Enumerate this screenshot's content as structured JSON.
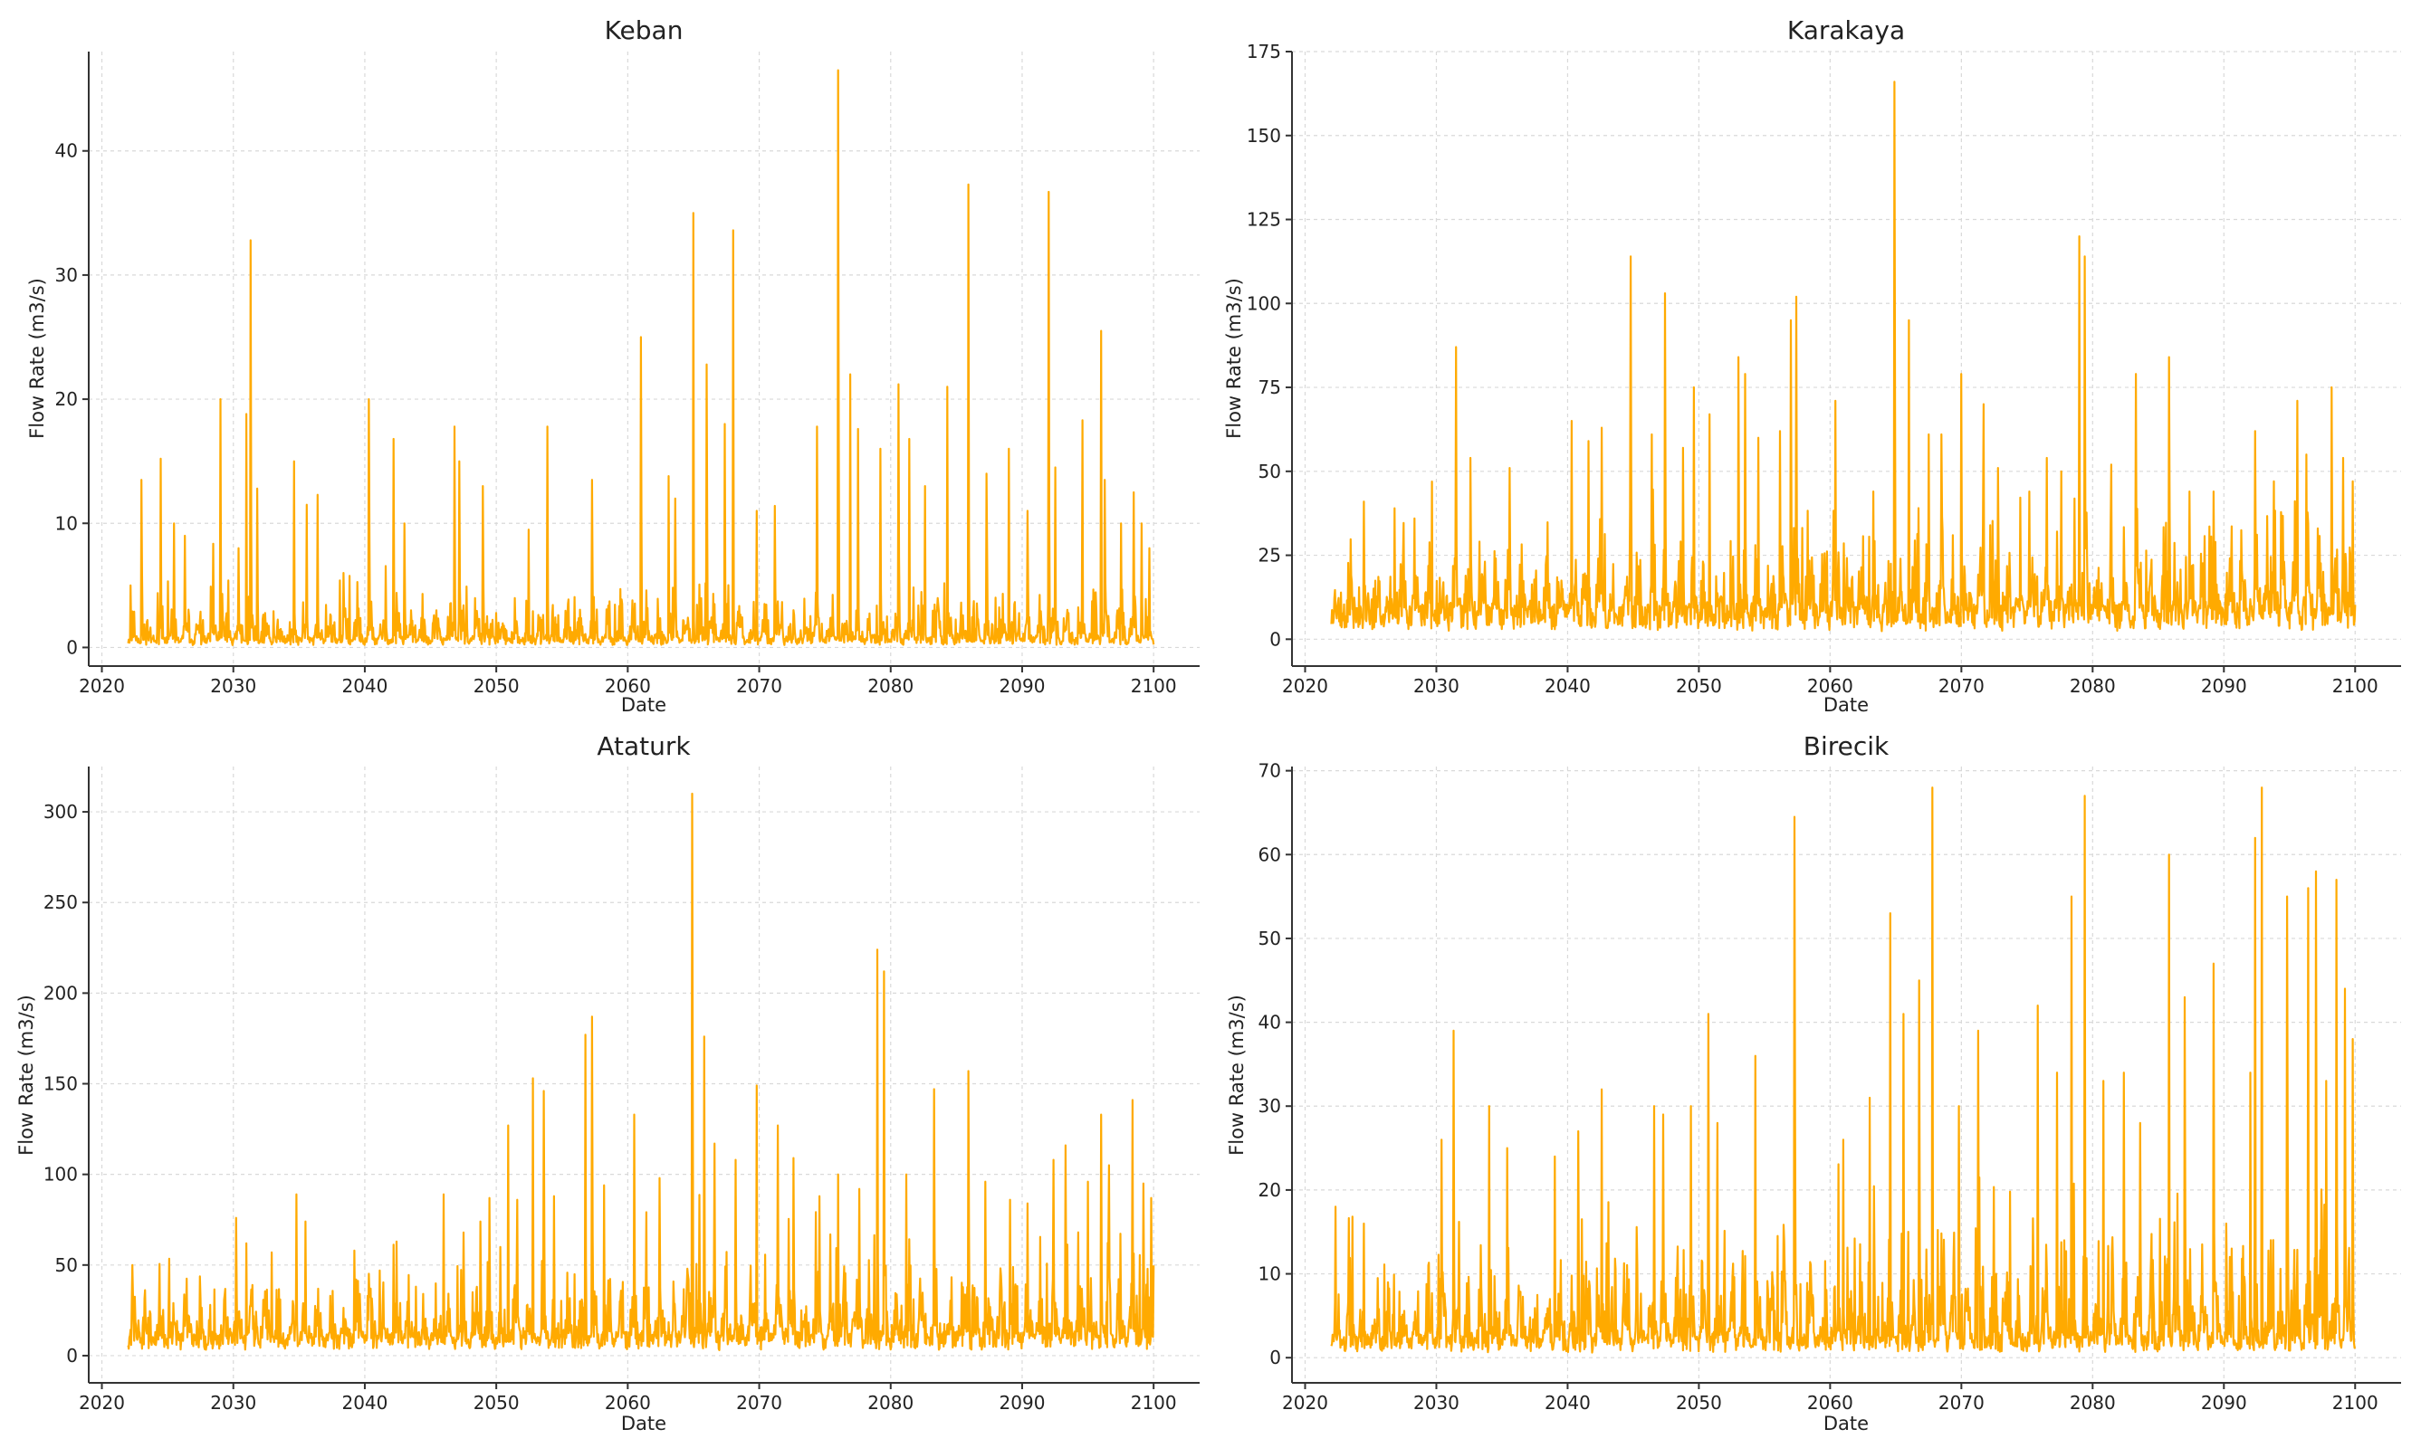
{
  "chart_data": [
    {
      "type": "line",
      "title": "Keban",
      "xlabel": "Date",
      "ylabel": "Flow Rate (m3/s)",
      "xlim": [
        2022,
        2100
      ],
      "ylim": [
        -1.5,
        48
      ],
      "xticks": [
        2020,
        2030,
        2040,
        2050,
        2060,
        2070,
        2080,
        2090,
        2100
      ],
      "yticks": [
        0,
        10,
        20,
        30,
        40
      ],
      "grid": true,
      "color": "#FFAA00",
      "baseline": 0.6,
      "spread": 2.2,
      "seed": 11,
      "series": [
        {
          "name": "Flow Rate",
          "peaks": [
            [
              2022.2,
              5
            ],
            [
              2023,
              13.5
            ],
            [
              2024.5,
              15.2
            ],
            [
              2025.5,
              10
            ],
            [
              2026.3,
              9
            ],
            [
              2029,
              20
            ],
            [
              2030.4,
              8
            ],
            [
              2031,
              18.8
            ],
            [
              2031.3,
              32.8
            ],
            [
              2031.8,
              12.8
            ],
            [
              2034.6,
              15
            ],
            [
              2035.6,
              11.5
            ],
            [
              2036.4,
              12.3
            ],
            [
              2038.4,
              6
            ],
            [
              2040.3,
              20
            ],
            [
              2042.2,
              16.8
            ],
            [
              2043,
              10
            ],
            [
              2046.8,
              17.8
            ],
            [
              2047.2,
              15
            ],
            [
              2049,
              13
            ],
            [
              2053.9,
              17.8
            ],
            [
              2057.3,
              13.5
            ],
            [
              2061,
              25
            ],
            [
              2063.1,
              13.8
            ],
            [
              2063.6,
              12
            ],
            [
              2065,
              35
            ],
            [
              2066,
              22.8
            ],
            [
              2067.4,
              18
            ],
            [
              2068,
              33.6
            ],
            [
              2069.8,
              11
            ],
            [
              2071.2,
              11.4
            ],
            [
              2074.4,
              17.8
            ],
            [
              2076,
              46.5
            ],
            [
              2076.9,
              22
            ],
            [
              2077.5,
              17.6
            ],
            [
              2079.2,
              16
            ],
            [
              2080.6,
              21.2
            ],
            [
              2081.4,
              16.8
            ],
            [
              2082.6,
              13
            ],
            [
              2084.3,
              21
            ],
            [
              2085.9,
              37.3
            ],
            [
              2087.3,
              14
            ],
            [
              2089,
              16
            ],
            [
              2090.4,
              11
            ],
            [
              2092,
              36.7
            ],
            [
              2092.5,
              14.5
            ],
            [
              2094.6,
              18.3
            ],
            [
              2096,
              25.5
            ],
            [
              2096.3,
              13.5
            ],
            [
              2097.5,
              10
            ],
            [
              2098.5,
              12.5
            ],
            [
              2099.1,
              10
            ],
            [
              2099.7,
              8
            ]
          ]
        }
      ]
    },
    {
      "type": "line",
      "title": "Karakaya",
      "xlabel": "Date",
      "ylabel": "Flow Rate (m3/s)",
      "xlim": [
        2022,
        2100
      ],
      "ylim": [
        -8,
        175
      ],
      "xticks": [
        2020,
        2030,
        2040,
        2050,
        2060,
        2070,
        2080,
        2090,
        2100
      ],
      "yticks": [
        0,
        25,
        50,
        75,
        100,
        125,
        150,
        175
      ],
      "grid": true,
      "color": "#FFAA00",
      "baseline": 8,
      "spread": 15,
      "seed": 23,
      "series": [
        {
          "name": "Flow Rate",
          "peaks": [
            [
              2024.5,
              41
            ],
            [
              2026.8,
              39
            ],
            [
              2031.5,
              87
            ],
            [
              2032.6,
              54
            ],
            [
              2035.6,
              51
            ],
            [
              2040.3,
              65
            ],
            [
              2041.6,
              59
            ],
            [
              2042.6,
              63
            ],
            [
              2044.8,
              114
            ],
            [
              2046.4,
              61
            ],
            [
              2047.4,
              103
            ],
            [
              2048.8,
              57
            ],
            [
              2049.6,
              75
            ],
            [
              2050.8,
              67
            ],
            [
              2053,
              84
            ],
            [
              2053.5,
              79
            ],
            [
              2056.2,
              62
            ],
            [
              2057,
              95
            ],
            [
              2057.4,
              102
            ],
            [
              2060.4,
              71
            ],
            [
              2063.3,
              44
            ],
            [
              2064.9,
              166
            ],
            [
              2066,
              95
            ],
            [
              2067.5,
              61
            ],
            [
              2068.5,
              61
            ],
            [
              2070,
              79
            ],
            [
              2071.7,
              70
            ],
            [
              2072.8,
              51
            ],
            [
              2075.2,
              44
            ],
            [
              2076.5,
              54
            ],
            [
              2077.6,
              50
            ],
            [
              2079,
              120
            ],
            [
              2079.4,
              114
            ],
            [
              2081.4,
              52
            ],
            [
              2083.3,
              79
            ],
            [
              2085.8,
              84
            ],
            [
              2087.4,
              44
            ],
            [
              2089.2,
              44
            ],
            [
              2092.4,
              62
            ],
            [
              2093.8,
              47
            ],
            [
              2095.6,
              71
            ],
            [
              2096.3,
              55
            ],
            [
              2098.2,
              75
            ],
            [
              2099.1,
              54
            ],
            [
              2099.8,
              47
            ]
          ]
        }
      ]
    },
    {
      "type": "line",
      "title": "Ataturk",
      "xlabel": "Date",
      "ylabel": "Flow Rate (m3/s)",
      "xlim": [
        2022,
        2100
      ],
      "ylim": [
        -15,
        325
      ],
      "xticks": [
        2020,
        2030,
        2040,
        2050,
        2060,
        2070,
        2080,
        2090,
        2100
      ],
      "yticks": [
        0,
        50,
        100,
        150,
        200,
        250,
        300
      ],
      "grid": true,
      "color": "#FFAA00",
      "baseline": 10,
      "spread": 24,
      "seed": 37,
      "series": [
        {
          "name": "Flow Rate",
          "peaks": [
            [
              2022.3,
              50
            ],
            [
              2030.2,
              76
            ],
            [
              2031,
              62
            ],
            [
              2034.8,
              89
            ],
            [
              2035.5,
              74
            ],
            [
              2039.2,
              58
            ],
            [
              2042.4,
              63
            ],
            [
              2046,
              89
            ],
            [
              2047.5,
              68
            ],
            [
              2048.8,
              74
            ],
            [
              2049.5,
              87
            ],
            [
              2050.9,
              127
            ],
            [
              2051.6,
              86
            ],
            [
              2052.8,
              153
            ],
            [
              2053.6,
              146
            ],
            [
              2054.4,
              88
            ],
            [
              2056.8,
              177
            ],
            [
              2057.3,
              187
            ],
            [
              2058.2,
              94
            ],
            [
              2060.5,
              133
            ],
            [
              2062.4,
              98
            ],
            [
              2064.9,
              310
            ],
            [
              2065.8,
              176
            ],
            [
              2066.6,
              117
            ],
            [
              2068.2,
              108
            ],
            [
              2069.8,
              149
            ],
            [
              2071.4,
              127
            ],
            [
              2072.6,
              109
            ],
            [
              2074.6,
              88
            ],
            [
              2076,
              100
            ],
            [
              2077.6,
              92
            ],
            [
              2079,
              224
            ],
            [
              2079.5,
              212
            ],
            [
              2081.2,
              100
            ],
            [
              2083.3,
              147
            ],
            [
              2085.9,
              157
            ],
            [
              2087.2,
              96
            ],
            [
              2089.1,
              86
            ],
            [
              2090.4,
              84
            ],
            [
              2092.4,
              108
            ],
            [
              2093.3,
              116
            ],
            [
              2095,
              96
            ],
            [
              2096,
              133
            ],
            [
              2096.6,
              105
            ],
            [
              2098.4,
              141
            ],
            [
              2099.2,
              95
            ],
            [
              2099.8,
              87
            ]
          ]
        }
      ]
    },
    {
      "type": "line",
      "title": "Birecik",
      "xlabel": "Date",
      "ylabel": "Flow Rate (m3/s)",
      "xlim": [
        2022,
        2100
      ],
      "ylim": [
        -3,
        70.5
      ],
      "xticks": [
        2020,
        2030,
        2040,
        2050,
        2060,
        2070,
        2080,
        2090,
        2100
      ],
      "yticks": [
        0,
        10,
        20,
        30,
        40,
        50,
        60,
        70
      ],
      "grid": true,
      "color": "#FFAA00",
      "baseline": 2,
      "spread": 7,
      "seed": 51,
      "series": [
        {
          "name": "Flow Rate",
          "peaks": [
            [
              2022.3,
              18
            ],
            [
              2024.5,
              16
            ],
            [
              2030.4,
              26
            ],
            [
              2031.3,
              39
            ],
            [
              2034,
              30
            ],
            [
              2035.4,
              25
            ],
            [
              2039,
              24
            ],
            [
              2040.8,
              27
            ],
            [
              2042.6,
              32
            ],
            [
              2046.6,
              30
            ],
            [
              2047.3,
              29
            ],
            [
              2049.4,
              30
            ],
            [
              2050.7,
              41
            ],
            [
              2051.4,
              28
            ],
            [
              2054.3,
              36
            ],
            [
              2057.3,
              64.5
            ],
            [
              2061,
              26
            ],
            [
              2063,
              31
            ],
            [
              2064.6,
              53
            ],
            [
              2065.6,
              41
            ],
            [
              2066.8,
              45
            ],
            [
              2067.8,
              68
            ],
            [
              2069.8,
              30
            ],
            [
              2071.3,
              39
            ],
            [
              2075.8,
              42
            ],
            [
              2077.3,
              34
            ],
            [
              2078.4,
              55
            ],
            [
              2079.4,
              67
            ],
            [
              2080.8,
              33
            ],
            [
              2082.4,
              34
            ],
            [
              2083.6,
              28
            ],
            [
              2085.8,
              60
            ],
            [
              2087,
              43
            ],
            [
              2089.2,
              47
            ],
            [
              2090.2,
              16
            ],
            [
              2092,
              34
            ],
            [
              2092.4,
              62
            ],
            [
              2092.9,
              68
            ],
            [
              2094.8,
              55
            ],
            [
              2096.4,
              56
            ],
            [
              2097,
              58
            ],
            [
              2097.8,
              33
            ],
            [
              2098.6,
              57
            ],
            [
              2099.2,
              44
            ],
            [
              2099.8,
              38
            ]
          ]
        }
      ]
    }
  ]
}
